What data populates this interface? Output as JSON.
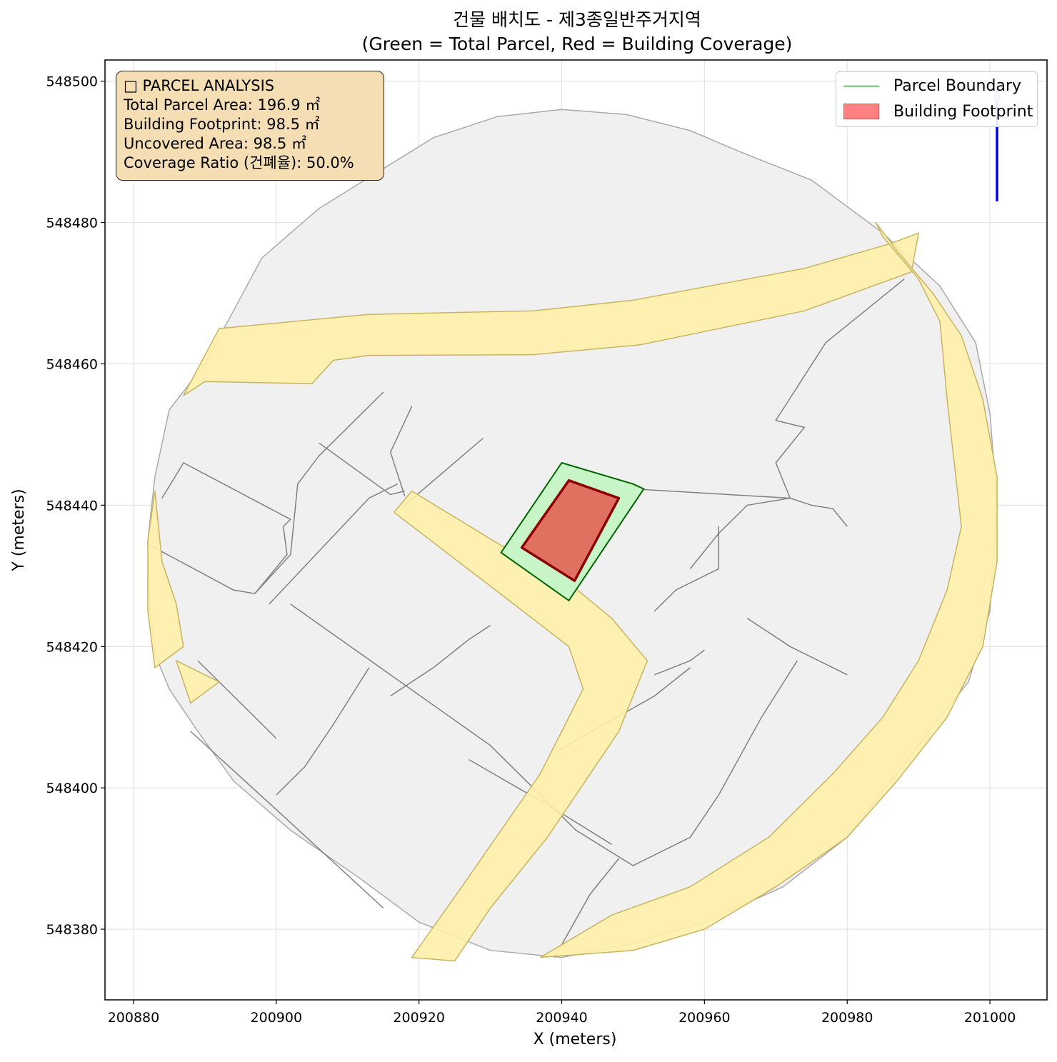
{
  "figure": {
    "title_line1": "건물 배치도 - 제3종일반주거지역",
    "title_line2": "(Green = Total Parcel, Red = Building Coverage)",
    "xlabel": "X (meters)",
    "ylabel": "Y (meters)"
  },
  "axes": {
    "xlim": [
      200876,
      201008
    ],
    "ylim": [
      548370,
      548503
    ],
    "xticks": [
      200880,
      200900,
      200920,
      200940,
      200960,
      200980,
      201000
    ],
    "yticks": [
      548380,
      548400,
      548420,
      548440,
      548460,
      548480,
      548500
    ],
    "grid": true
  },
  "info_box": {
    "title": "□ PARCEL ANALYSIS",
    "total_parcel_area": "Total Parcel Area: 196.9 ㎡",
    "building_footprint": "Building Footprint: 98.5 ㎡",
    "uncovered_area": "Uncovered Area: 98.5 ㎡",
    "coverage_ratio": "Coverage Ratio (건폐율): 50.0%"
  },
  "legend": {
    "placement": "top-right",
    "entries": [
      {
        "label": "Parcel Boundary",
        "kind": "line",
        "color": "#006400"
      },
      {
        "label": "Building Footprint",
        "kind": "patch",
        "color": "#ff8080"
      }
    ]
  },
  "colors": {
    "parcel_fill": "#c8f5c8",
    "parcel_edge": "#006400",
    "building_fill": "#e07060",
    "building_edge": "#8b0000",
    "road_fill": "#fff0aa",
    "road_edge": "#c8b460",
    "context_fill": "#f0f0f0",
    "context_edge": "#808080",
    "north_arrow": "#0000ee"
  },
  "chart_data": {
    "type": "map",
    "parcel": [
      [
        200940,
        548446
      ],
      [
        200950,
        548443
      ],
      [
        200951.5,
        548442.3
      ],
      [
        200941,
        548426.5
      ],
      [
        200931.5,
        548433.3
      ]
    ],
    "building": [
      [
        200941,
        548443.5
      ],
      [
        200948,
        548441
      ],
      [
        200941.8,
        548429.3
      ],
      [
        200934.4,
        548434
      ]
    ],
    "context_boundary": [
      [
        200882,
        548435
      ],
      [
        200883,
        548444
      ],
      [
        200885,
        548453.5
      ],
      [
        200890,
        548460
      ],
      [
        200898,
        548475
      ],
      [
        200906,
        548482
      ],
      [
        200922,
        548492
      ],
      [
        200931,
        548495
      ],
      [
        200940,
        548496
      ],
      [
        200949,
        548495.3
      ],
      [
        200958,
        548493
      ],
      [
        200965,
        548490
      ],
      [
        200975,
        548486
      ],
      [
        200985,
        548478.5
      ],
      [
        200993,
        548471
      ],
      [
        200998,
        548463
      ],
      [
        201000,
        548453
      ],
      [
        201001,
        548440
      ],
      [
        201000,
        548425
      ],
      [
        200997,
        548415
      ],
      [
        200993,
        548410
      ],
      [
        200987,
        548402
      ],
      [
        200980,
        548393
      ],
      [
        200971,
        548386
      ],
      [
        200960,
        548381
      ],
      [
        200950,
        548378
      ],
      [
        200940,
        548376
      ],
      [
        200930,
        548377
      ],
      [
        200920,
        548381
      ],
      [
        200912,
        548387
      ],
      [
        200902,
        548394
      ],
      [
        200894,
        548401
      ],
      [
        200889,
        548408
      ],
      [
        200885,
        548414
      ],
      [
        200883,
        548419
      ],
      [
        200882.3,
        548425
      ]
    ],
    "context_lines": [
      [
        [
          200884,
          548441
        ],
        [
          200887,
          548446
        ],
        [
          200902,
          548438
        ],
        [
          200901,
          548437
        ],
        [
          200901.5,
          548433
        ],
        [
          200897,
          548427.5
        ],
        [
          200894,
          548428
        ],
        [
          200882,
          548434.5
        ]
      ],
      [
        [
          200897,
          548427.5
        ],
        [
          200902,
          548433
        ],
        [
          200903,
          548443
        ],
        [
          200906,
          548447
        ],
        [
          200915,
          548456
        ]
      ],
      [
        [
          200906,
          548448.8
        ],
        [
          200916,
          548441.5
        ],
        [
          200918,
          548442
        ]
      ],
      [
        [
          200899,
          548426
        ],
        [
          200913,
          548441
        ],
        [
          200917,
          548443
        ]
      ],
      [
        [
          200919,
          548454
        ],
        [
          200916,
          548447.5
        ],
        [
          200918,
          548441.3
        ]
      ],
      [
        [
          200918,
          548440
        ],
        [
          200929,
          548449.5
        ]
      ],
      [
        [
          200902,
          548426
        ],
        [
          200930,
          548406
        ],
        [
          200935,
          548401
        ],
        [
          200942,
          548394
        ],
        [
          200950,
          548389
        ],
        [
          200958,
          548393
        ],
        [
          200962,
          548399
        ],
        [
          200968,
          548410
        ],
        [
          200973,
          548418
        ]
      ],
      [
        [
          200916,
          548413
        ],
        [
          200922,
          548417
        ],
        [
          200927,
          548421
        ],
        [
          200930,
          548423
        ]
      ],
      [
        [
          200913,
          548417
        ],
        [
          200908,
          548409
        ],
        [
          200904,
          548403
        ],
        [
          200900,
          548399
        ]
      ],
      [
        [
          200888,
          548408
        ],
        [
          200901,
          548396
        ],
        [
          200915,
          548383
        ]
      ],
      [
        [
          200889,
          548418
        ],
        [
          200895,
          548412
        ],
        [
          200900,
          548407
        ]
      ],
      [
        [
          200927,
          548404
        ],
        [
          200939,
          548397
        ],
        [
          200947,
          548392
        ]
      ],
      [
        [
          200939,
          548405
        ],
        [
          200953,
          548413
        ],
        [
          200958,
          548417
        ]
      ],
      [
        [
          200939,
          548376
        ],
        [
          200944,
          548385
        ],
        [
          200948,
          548390
        ]
      ],
      [
        [
          200953,
          548416
        ],
        [
          200958,
          548418
        ],
        [
          200960,
          548419.5
        ]
      ],
      [
        [
          200958,
          548431
        ],
        [
          200962,
          548436
        ],
        [
          200966,
          548440
        ],
        [
          200972,
          548441
        ]
      ],
      [
        [
          200972,
          548441
        ],
        [
          200970,
          548446
        ],
        [
          200974,
          548451
        ],
        [
          200970,
          548452
        ],
        [
          200977,
          548463
        ],
        [
          200988,
          548472
        ]
      ],
      [
        [
          200950,
          548442.3
        ],
        [
          200972,
          548441
        ],
        [
          200975,
          548440
        ],
        [
          200978,
          548439.5
        ],
        [
          200980,
          548437
        ]
      ],
      [
        [
          200953,
          548425
        ],
        [
          200956,
          548428
        ],
        [
          200962,
          548431
        ],
        [
          200962,
          548437
        ]
      ],
      [
        [
          200966,
          548424
        ],
        [
          200972,
          548420
        ],
        [
          200980,
          548416
        ]
      ]
    ],
    "roads": [
      [
        [
          200892,
          548465
        ],
        [
          200913,
          548467
        ],
        [
          200936,
          548467.5
        ],
        [
          200950,
          548469
        ],
        [
          200974,
          548473.5
        ],
        [
          200986,
          548477
        ],
        [
          200990,
          548478.5
        ],
        [
          200989,
          548473
        ],
        [
          200974,
          548467.5
        ],
        [
          200951,
          548462.7
        ],
        [
          200936,
          548461.3
        ],
        [
          200913,
          548461.2
        ],
        [
          200908,
          548460.5
        ],
        [
          200906,
          548458.3
        ],
        [
          200905,
          548457.2
        ],
        [
          200890,
          548457.5
        ],
        [
          200887,
          548455.5
        ]
      ],
      [
        [
          200883,
          548442
        ],
        [
          200884,
          548432
        ],
        [
          200886,
          548426
        ],
        [
          200887,
          548420
        ],
        [
          200883,
          548417
        ],
        [
          200882,
          548425
        ],
        [
          200882,
          548435
        ]
      ],
      [
        [
          200919,
          548442
        ],
        [
          200916.5,
          548439
        ],
        [
          200932,
          548427
        ],
        [
          200941,
          548420
        ],
        [
          200943,
          548414
        ],
        [
          200937,
          548402
        ],
        [
          200926,
          548386
        ],
        [
          200919,
          548376
        ],
        [
          200925,
          548375.5
        ],
        [
          200930,
          548383
        ],
        [
          200938,
          548393
        ],
        [
          200948,
          548408
        ],
        [
          200952,
          548418
        ],
        [
          200947,
          548424
        ],
        [
          200941,
          548429
        ],
        [
          200932,
          548434
        ]
      ],
      [
        [
          200886,
          548418
        ],
        [
          200888,
          548412
        ],
        [
          200892,
          548415
        ]
      ],
      [
        [
          200937,
          548376
        ],
        [
          200950,
          548377
        ],
        [
          200960,
          548380
        ],
        [
          200970,
          548386
        ],
        [
          200980,
          548393
        ],
        [
          200987,
          548401
        ],
        [
          200994,
          548410
        ],
        [
          200999,
          548420
        ],
        [
          201001,
          548432
        ],
        [
          201001,
          548444
        ],
        [
          200999,
          548455
        ],
        [
          200996,
          548464
        ],
        [
          200992,
          548470
        ],
        [
          200987,
          548476
        ],
        [
          200984,
          548480
        ],
        [
          200985,
          548478
        ],
        [
          200990,
          548472
        ],
        [
          200993,
          548466
        ],
        [
          200994,
          548455
        ],
        [
          200995,
          548446
        ],
        [
          200996,
          548437
        ],
        [
          200994,
          548428
        ],
        [
          200990,
          548418
        ],
        [
          200985,
          548410
        ],
        [
          200978,
          548402
        ],
        [
          200969,
          548393
        ],
        [
          200958,
          548386
        ],
        [
          200947,
          548382
        ]
      ]
    ],
    "north_arrow": {
      "x": 201001,
      "y_from": 548483,
      "y_to": 548500
    }
  }
}
